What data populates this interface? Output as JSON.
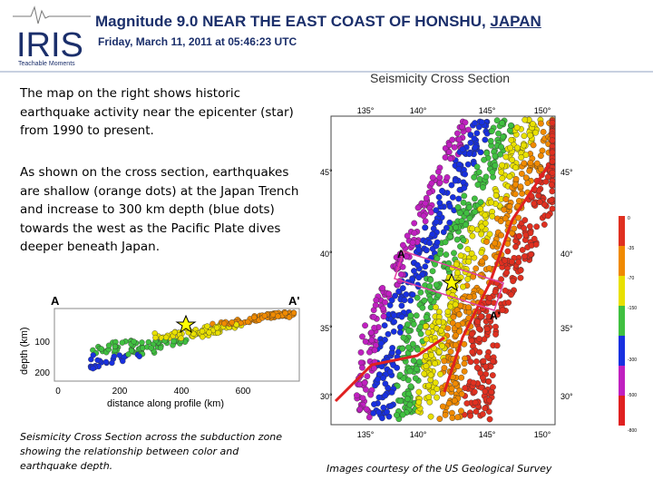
{
  "header": {
    "logo": "IRIS",
    "logo_tagline": "Teachable Moments",
    "title": "Magnitude 9.0 NEAR THE EAST COAST OF HONSHU, ",
    "title_link": "JAPAN",
    "subtitle": "Friday,  March 11, 2011 at 05:46:23 UTC"
  },
  "body": {
    "paragraphs": [
      "The map on the right shows historic earthquake activity near the epicenter (star) from 1990 to present.",
      "As shown on the cross section, earthquakes are shallow (orange dots) at the Japan Trench and increase to 300 km depth (blue dots) towards the west as the Pacific Plate dives deeper beneath Japan."
    ]
  },
  "cross_section": {
    "label_start": "A",
    "label_end": "A'",
    "y_label": "depth (km)",
    "x_label": "distance along profile (km)",
    "yticks": [
      "100",
      "200"
    ],
    "xticks": [
      "0",
      "200",
      "400",
      "600"
    ],
    "caption": "Seismicity Cross Section across the subduction zone showing the relationship between color and earthquake depth."
  },
  "map": {
    "title": "Seismicity Cross Section",
    "lon_ticks": [
      "135°",
      "140°",
      "145°",
      "150°"
    ],
    "lat_ticks": [
      "45°",
      "40°",
      "35°",
      "30°"
    ],
    "label_start": "A",
    "label_end": "A'",
    "scale_labels": [
      "0",
      "-35",
      "-70",
      "-150",
      "-300",
      "-500",
      "-800"
    ],
    "credit": "Images courtesy of the US Geological Survey"
  }
}
